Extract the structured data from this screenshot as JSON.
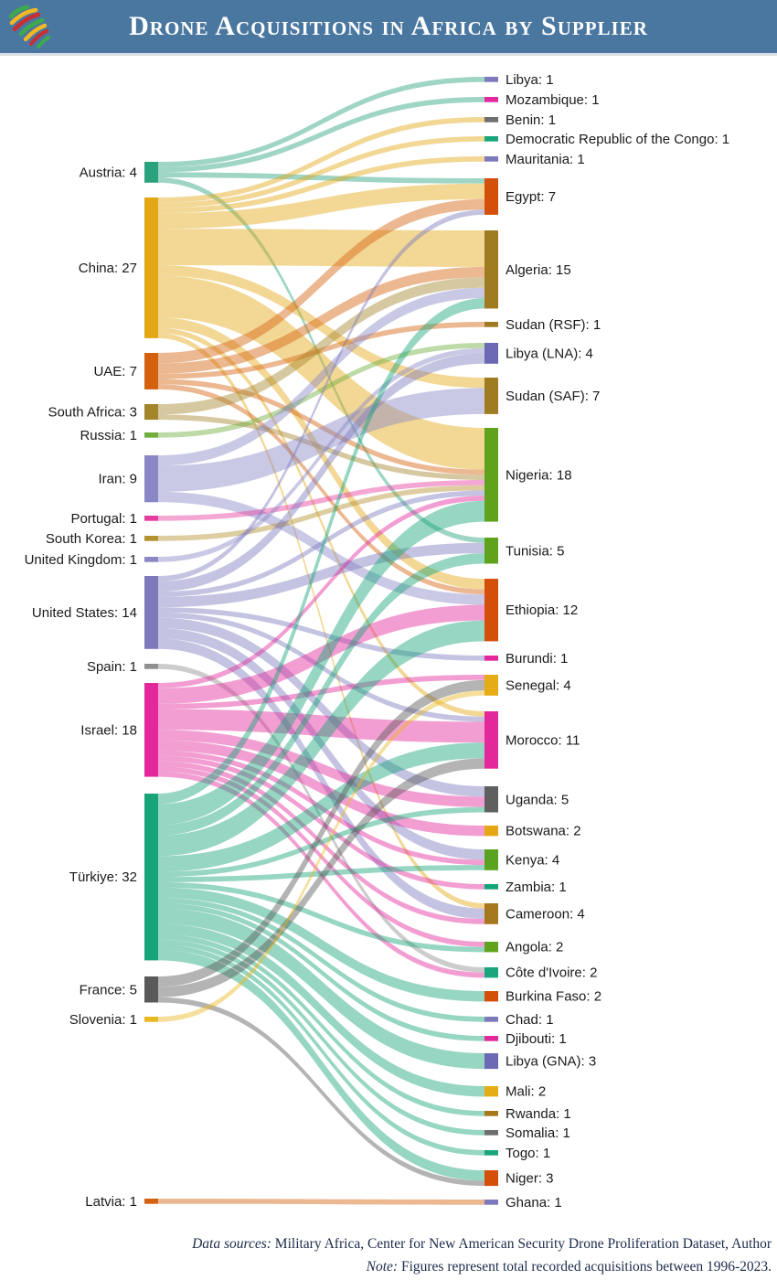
{
  "header": {
    "title": "Drone Acquisitions in Africa by Supplier",
    "background_color": "#4a77a0",
    "logo_colors": {
      "green": "#3faa4c",
      "yellow": "#f2b722",
      "red": "#c62f33"
    }
  },
  "chart_data": {
    "type": "sankey",
    "title": "Drone Acquisitions in Africa by Supplier",
    "unit": "recorded drone acquisitions 1996-2023",
    "sources": [
      {
        "id": "austria",
        "name": "Austria",
        "value": 4,
        "color": "#2aa27e"
      },
      {
        "id": "china",
        "name": "China",
        "value": 27,
        "color": "#e2a713"
      },
      {
        "id": "uae",
        "name": "UAE",
        "value": 7,
        "color": "#d4610e"
      },
      {
        "id": "southafrica",
        "name": "South Africa",
        "value": 3,
        "color": "#a3862c"
      },
      {
        "id": "russia",
        "name": "Russia",
        "value": 1,
        "color": "#6fae3c"
      },
      {
        "id": "iran",
        "name": "Iran",
        "value": 9,
        "color": "#8a87c6"
      },
      {
        "id": "portugal",
        "name": "Portugal",
        "value": 1,
        "color": "#e63c9e"
      },
      {
        "id": "southkorea",
        "name": "South Korea",
        "value": 1,
        "color": "#b3912f"
      },
      {
        "id": "uk",
        "name": "United Kingdom",
        "value": 1,
        "color": "#8a87c6"
      },
      {
        "id": "us",
        "name": "United States",
        "value": 14,
        "color": "#7d7abc"
      },
      {
        "id": "spain",
        "name": "Spain",
        "value": 1,
        "color": "#8f8f8f"
      },
      {
        "id": "israel",
        "name": "Israel",
        "value": 18,
        "color": "#e3289b"
      },
      {
        "id": "turkiye",
        "name": "Türkiye",
        "value": 32,
        "color": "#17a478"
      },
      {
        "id": "france",
        "name": "France",
        "value": 5,
        "color": "#595959"
      },
      {
        "id": "slovenia",
        "name": "Slovenia",
        "value": 1,
        "color": "#e8b922"
      },
      {
        "id": "latvia",
        "name": "Latvia",
        "value": 1,
        "color": "#d4610e"
      }
    ],
    "targets": [
      {
        "id": "libya",
        "name": "Libya",
        "value": 1,
        "color": "#7d7abc"
      },
      {
        "id": "mozambique",
        "name": "Mozambique",
        "value": 1,
        "color": "#e3289b"
      },
      {
        "id": "benin",
        "name": "Benin",
        "value": 1,
        "color": "#6e6e6e"
      },
      {
        "id": "drc",
        "name": "Democratic Republic of the Congo",
        "value": 1,
        "color": "#1aa57d"
      },
      {
        "id": "mauritania",
        "name": "Mauritania",
        "value": 1,
        "color": "#7d7abc"
      },
      {
        "id": "egypt",
        "name": "Egypt",
        "value": 7,
        "color": "#d4500a"
      },
      {
        "id": "algeria",
        "name": "Algeria",
        "value": 15,
        "color": "#9f7c22"
      },
      {
        "id": "sudan_rsf",
        "name": "Sudan (RSF)",
        "value": 1,
        "color": "#9f7c22"
      },
      {
        "id": "libya_lna",
        "name": "Libya (LNA)",
        "value": 4,
        "color": "#6c69b4"
      },
      {
        "id": "sudan_saf",
        "name": "Sudan (SAF)",
        "value": 7,
        "color": "#9f7c22"
      },
      {
        "id": "nigeria",
        "name": "Nigeria",
        "value": 18,
        "color": "#5fa31d"
      },
      {
        "id": "tunisia",
        "name": "Tunisia",
        "value": 5,
        "color": "#5fa31d"
      },
      {
        "id": "ethiopia",
        "name": "Ethiopia",
        "value": 12,
        "color": "#d4500a"
      },
      {
        "id": "burundi",
        "name": "Burundi",
        "value": 1,
        "color": "#e3289b"
      },
      {
        "id": "senegal",
        "name": "Senegal",
        "value": 4,
        "color": "#e5ac15"
      },
      {
        "id": "morocco",
        "name": "Morocco",
        "value": 11,
        "color": "#e3289b"
      },
      {
        "id": "uganda",
        "name": "Uganda",
        "value": 5,
        "color": "#5f5f5f"
      },
      {
        "id": "botswana",
        "name": "Botswana",
        "value": 2,
        "color": "#e5a812"
      },
      {
        "id": "kenya",
        "name": "Kenya",
        "value": 4,
        "color": "#5aa321"
      },
      {
        "id": "zambia",
        "name": "Zambia",
        "value": 1,
        "color": "#15a477"
      },
      {
        "id": "cameroon",
        "name": "Cameroon",
        "value": 4,
        "color": "#a5781d"
      },
      {
        "id": "angola",
        "name": "Angola",
        "value": 2,
        "color": "#5fa31d"
      },
      {
        "id": "cote_divoire",
        "name": "Côte d'Ivoire",
        "value": 2,
        "color": "#1aa57d"
      },
      {
        "id": "burkina_faso",
        "name": "Burkina Faso",
        "value": 2,
        "color": "#d4500a"
      },
      {
        "id": "chad",
        "name": "Chad",
        "value": 1,
        "color": "#7d7abc"
      },
      {
        "id": "djibouti",
        "name": "Djibouti",
        "value": 1,
        "color": "#e3289b"
      },
      {
        "id": "libya_gna",
        "name": "Libya (GNA)",
        "value": 3,
        "color": "#6c69b4"
      },
      {
        "id": "mali",
        "name": "Mali",
        "value": 2,
        "color": "#e5ac15"
      },
      {
        "id": "rwanda",
        "name": "Rwanda",
        "value": 1,
        "color": "#a5781d"
      },
      {
        "id": "somalia",
        "name": "Somalia",
        "value": 1,
        "color": "#6e6e6e"
      },
      {
        "id": "togo",
        "name": "Togo",
        "value": 1,
        "color": "#1aa57d"
      },
      {
        "id": "niger",
        "name": "Niger",
        "value": 3,
        "color": "#d4500a"
      },
      {
        "id": "ghana",
        "name": "Ghana",
        "value": 1,
        "color": "#7d7abc"
      }
    ],
    "links": [
      {
        "source": "austria",
        "target": "libya",
        "value": 1
      },
      {
        "source": "austria",
        "target": "mozambique",
        "value": 1
      },
      {
        "source": "austria",
        "target": "egypt",
        "value": 1
      },
      {
        "source": "austria",
        "target": "tunisia",
        "value": 1
      },
      {
        "source": "china",
        "target": "benin",
        "value": 1
      },
      {
        "source": "china",
        "target": "drc",
        "value": 1
      },
      {
        "source": "china",
        "target": "mauritania",
        "value": 1
      },
      {
        "source": "china",
        "target": "egypt",
        "value": 3
      },
      {
        "source": "china",
        "target": "algeria",
        "value": 7
      },
      {
        "source": "china",
        "target": "sudan_saf",
        "value": 2
      },
      {
        "source": "china",
        "target": "nigeria",
        "value": 8
      },
      {
        "source": "china",
        "target": "ethiopia",
        "value": 2
      },
      {
        "source": "china",
        "target": "morocco",
        "value": 1
      },
      {
        "source": "china",
        "target": "cameroon",
        "value": 1
      },
      {
        "source": "uae",
        "target": "egypt",
        "value": 2
      },
      {
        "source": "uae",
        "target": "algeria",
        "value": 2
      },
      {
        "source": "uae",
        "target": "sudan_rsf",
        "value": 1
      },
      {
        "source": "uae",
        "target": "ethiopia",
        "value": 1
      },
      {
        "source": "uae",
        "target": "nigeria",
        "value": 1
      },
      {
        "source": "southafrica",
        "target": "algeria",
        "value": 2
      },
      {
        "source": "southafrica",
        "target": "nigeria",
        "value": 1
      },
      {
        "source": "russia",
        "target": "libya_lna",
        "value": 1
      },
      {
        "source": "iran",
        "target": "sudan_saf",
        "value": 5
      },
      {
        "source": "iran",
        "target": "ethiopia",
        "value": 2
      },
      {
        "source": "iran",
        "target": "algeria",
        "value": 2
      },
      {
        "source": "portugal",
        "target": "nigeria",
        "value": 1
      },
      {
        "source": "southkorea",
        "target": "nigeria",
        "value": 1
      },
      {
        "source": "uk",
        "target": "libya_lna",
        "value": 1
      },
      {
        "source": "us",
        "target": "egypt",
        "value": 1
      },
      {
        "source": "us",
        "target": "tunisia",
        "value": 2
      },
      {
        "source": "us",
        "target": "burundi",
        "value": 1
      },
      {
        "source": "us",
        "target": "morocco",
        "value": 1
      },
      {
        "source": "us",
        "target": "uganda",
        "value": 2
      },
      {
        "source": "us",
        "target": "kenya",
        "value": 2
      },
      {
        "source": "us",
        "target": "cameroon",
        "value": 2
      },
      {
        "source": "us",
        "target": "libya_lna",
        "value": 2
      },
      {
        "source": "us",
        "target": "nigeria",
        "value": 1
      },
      {
        "source": "spain",
        "target": "cote_divoire",
        "value": 1
      },
      {
        "source": "israel",
        "target": "nigeria",
        "value": 1
      },
      {
        "source": "israel",
        "target": "ethiopia",
        "value": 3
      },
      {
        "source": "israel",
        "target": "morocco",
        "value": 4
      },
      {
        "source": "israel",
        "target": "uganda",
        "value": 2
      },
      {
        "source": "israel",
        "target": "botswana",
        "value": 2
      },
      {
        "source": "israel",
        "target": "zambia",
        "value": 1
      },
      {
        "source": "israel",
        "target": "cameroon",
        "value": 1
      },
      {
        "source": "israel",
        "target": "angola",
        "value": 1
      },
      {
        "source": "israel",
        "target": "cote_divoire",
        "value": 1
      },
      {
        "source": "israel",
        "target": "kenya",
        "value": 1
      },
      {
        "source": "israel",
        "target": "senegal",
        "value": 1
      },
      {
        "source": "turkiye",
        "target": "algeria",
        "value": 2
      },
      {
        "source": "turkiye",
        "target": "nigeria",
        "value": 4
      },
      {
        "source": "turkiye",
        "target": "tunisia",
        "value": 2
      },
      {
        "source": "turkiye",
        "target": "ethiopia",
        "value": 4
      },
      {
        "source": "turkiye",
        "target": "morocco",
        "value": 3
      },
      {
        "source": "turkiye",
        "target": "uganda",
        "value": 1
      },
      {
        "source": "turkiye",
        "target": "kenya",
        "value": 1
      },
      {
        "source": "turkiye",
        "target": "angola",
        "value": 1
      },
      {
        "source": "turkiye",
        "target": "burkina_faso",
        "value": 2
      },
      {
        "source": "turkiye",
        "target": "chad",
        "value": 1
      },
      {
        "source": "turkiye",
        "target": "djibouti",
        "value": 1
      },
      {
        "source": "turkiye",
        "target": "libya_gna",
        "value": 3
      },
      {
        "source": "turkiye",
        "target": "mali",
        "value": 2
      },
      {
        "source": "turkiye",
        "target": "rwanda",
        "value": 1
      },
      {
        "source": "turkiye",
        "target": "somalia",
        "value": 1
      },
      {
        "source": "turkiye",
        "target": "togo",
        "value": 1
      },
      {
        "source": "turkiye",
        "target": "niger",
        "value": 2
      },
      {
        "source": "france",
        "target": "morocco",
        "value": 2
      },
      {
        "source": "france",
        "target": "senegal",
        "value": 2
      },
      {
        "source": "france",
        "target": "niger",
        "value": 1
      },
      {
        "source": "slovenia",
        "target": "senegal",
        "value": 1
      },
      {
        "source": "latvia",
        "target": "ghana",
        "value": 1
      }
    ]
  },
  "footer": {
    "sources_label": "Data sources:",
    "sources_text": " Military Africa, Center for New American Security Drone Proliferation Dataset, Author",
    "note_label": "Note:",
    "note_text": " Figures represent total recorded acquisitions between 1996-2023."
  }
}
